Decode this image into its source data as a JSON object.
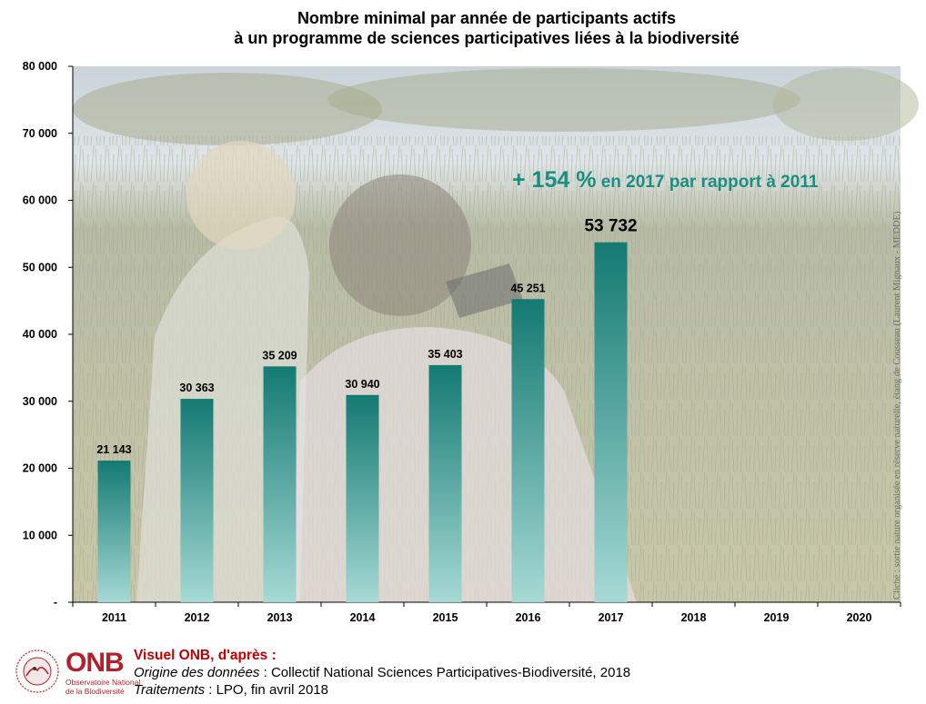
{
  "chart_data": {
    "type": "bar",
    "title_lines": [
      "Nombre minimal par année de participants actifs",
      "à un programme de sciences participatives liées à la biodiversité"
    ],
    "categories": [
      "2011",
      "2012",
      "2013",
      "2014",
      "2015",
      "2016",
      "2017",
      "2018",
      "2019",
      "2020"
    ],
    "values": [
      21143,
      30363,
      35209,
      30940,
      35403,
      45251,
      53732,
      null,
      null,
      null
    ],
    "value_labels": [
      "21 143",
      "30 363",
      "35 209",
      "30 940",
      "35 403",
      "45 251",
      "53 732",
      "",
      "",
      ""
    ],
    "ylim": [
      0,
      80000
    ],
    "yticks": [
      0,
      10000,
      20000,
      30000,
      40000,
      50000,
      60000,
      70000,
      80000
    ],
    "ytick_labels": [
      "-",
      "10 000",
      "20 000",
      "30 000",
      "40 000",
      "50 000",
      "60 000",
      "70 000",
      "80 000"
    ],
    "xlabel": "",
    "ylabel": "",
    "grid": false,
    "legend": "none",
    "bar_color_top": "#137a72",
    "bar_color_bottom": "#a6d9d4",
    "annotation": {
      "big": "+ 154 %",
      "small": " en 2017 par rapport à 2011",
      "color": "#1a8f80"
    },
    "photo_credit": "Cliché : sortie nature organisée en réserve naturelle, étang de Cousseau (Laurent Mignaux - MEDDE)"
  },
  "footer": {
    "logo_text": "ONB",
    "logo_sub_line1": "Observatoire National",
    "logo_sub_line2": "de la Biodiversité",
    "visual_title": "Visuel ONB, d'après :",
    "origin_label": "Origine des données",
    "origin_value": " : Collectif National Sciences Participatives-Biodiversité,  2018",
    "processing_label": "Traitements",
    "processing_value": " : LPO, fin avril 2018",
    "brand_color": "#b51f2c"
  }
}
